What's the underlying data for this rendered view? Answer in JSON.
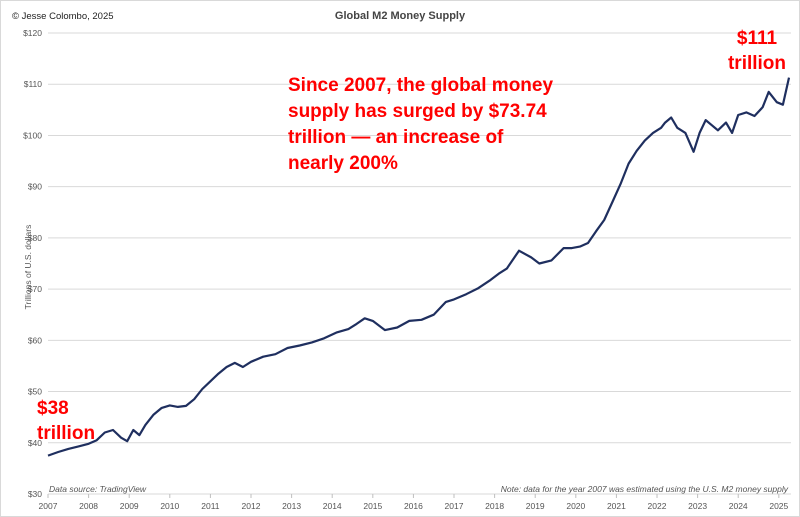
{
  "header": {
    "copyright": "© Jesse Colombo, 2025",
    "title": "Global M2 Money Supply"
  },
  "annotations": {
    "main": "Since 2007, the global money supply has surged by $73.74 trillion — an increase of nearly 200%",
    "end_value": "$111",
    "end_unit": "trillion",
    "start_value": "$38",
    "start_unit": "trillion"
  },
  "footer": {
    "source": "Data source: TradingView",
    "note": "Note: data for the year 2007 was estimated using the U.S. M2 money supply"
  },
  "chart_data": {
    "type": "line",
    "title": "Global M2 Money Supply",
    "xlabel": "",
    "ylabel": "Trillions of U.S. dollars",
    "ylim": [
      30,
      120
    ],
    "xlim": [
      2007,
      2025.3
    ],
    "y_ticks": [
      "$30",
      "$40",
      "$50",
      "$60",
      "$70",
      "$80",
      "$90",
      "$100",
      "$110",
      "$120"
    ],
    "x_ticks": [
      "2007",
      "2008",
      "2009",
      "2010",
      "2011",
      "2012",
      "2013",
      "2014",
      "2015",
      "2016",
      "2017",
      "2018",
      "2019",
      "2020",
      "2021",
      "2022",
      "2023",
      "2024",
      "2025"
    ],
    "grid": "horizontal",
    "line_color": "#1f2f5f",
    "series": [
      {
        "x": [
          2007.0,
          2007.25,
          2007.5,
          2007.75,
          2008.0,
          2008.2,
          2008.4,
          2008.6,
          2008.8,
          2008.95,
          2009.1,
          2009.25,
          2009.4,
          2009.6,
          2009.8,
          2010.0,
          2010.2,
          2010.4,
          2010.6,
          2010.8,
          2011.0,
          2011.2,
          2011.4,
          2011.6,
          2011.8,
          2012.0,
          2012.3,
          2012.6,
          2012.9,
          2013.2,
          2013.5,
          2013.8,
          2014.1,
          2014.4,
          2014.6,
          2014.8,
          2015.0,
          2015.3,
          2015.6,
          2015.9,
          2016.2,
          2016.5,
          2016.8,
          2017.0,
          2017.3,
          2017.6,
          2017.9,
          2018.1,
          2018.3,
          2018.6,
          2018.9,
          2019.1,
          2019.4,
          2019.7,
          2019.9,
          2020.1,
          2020.3,
          2020.5,
          2020.7,
          2020.9,
          2021.1,
          2021.3,
          2021.5,
          2021.7,
          2021.9,
          2022.1,
          2022.2,
          2022.35,
          2022.5,
          2022.7,
          2022.9,
          2023.05,
          2023.2,
          2023.35,
          2023.5,
          2023.7,
          2023.85,
          2024.0,
          2024.2,
          2024.4,
          2024.6,
          2024.75,
          2024.95,
          2025.1,
          2025.25
        ],
        "y": [
          37.5,
          38.2,
          38.8,
          39.3,
          39.8,
          40.5,
          42.0,
          42.5,
          41.0,
          40.3,
          42.5,
          41.5,
          43.5,
          45.5,
          46.8,
          47.3,
          47.0,
          47.2,
          48.5,
          50.5,
          52.0,
          53.5,
          54.8,
          55.6,
          54.8,
          55.8,
          56.8,
          57.3,
          58.5,
          59.0,
          59.6,
          60.4,
          61.5,
          62.2,
          63.2,
          64.3,
          63.8,
          62.0,
          62.5,
          63.8,
          64.0,
          65.0,
          67.5,
          68.0,
          69.0,
          70.2,
          71.8,
          73.0,
          74.0,
          77.5,
          76.2,
          75.0,
          75.6,
          78.0,
          78.0,
          78.3,
          79.0,
          81.3,
          83.5,
          87.0,
          90.5,
          94.5,
          97.0,
          99.0,
          100.5,
          101.5,
          102.5,
          103.5,
          101.5,
          100.5,
          96.8,
          100.5,
          103.0,
          102.0,
          101.0,
          102.5,
          100.5,
          104.0,
          104.5,
          103.8,
          105.5,
          108.5,
          106.5,
          106.0,
          111.3
        ]
      }
    ]
  }
}
